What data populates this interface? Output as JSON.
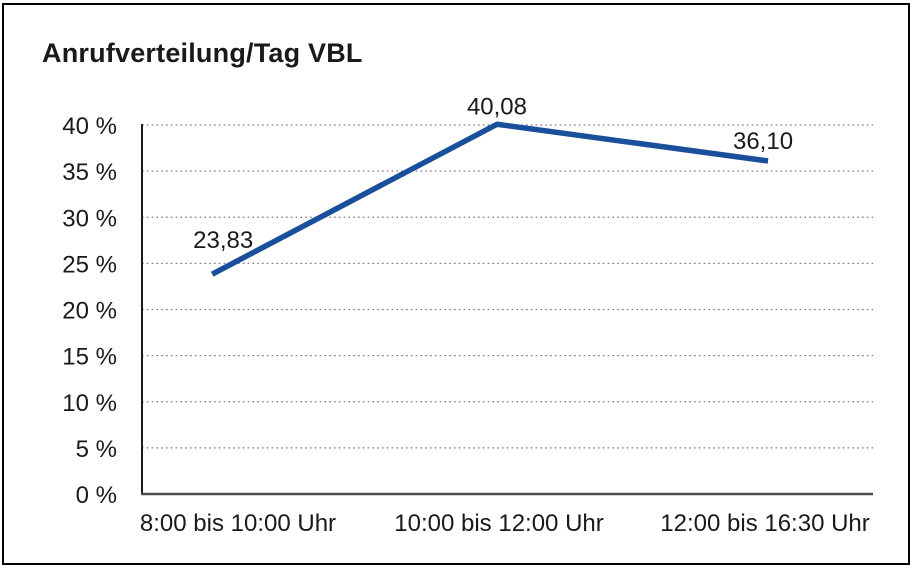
{
  "chart_data": {
    "type": "line",
    "title": "Anrufverteilung/Tag VBL",
    "categories": [
      "8:00 bis 10:00 Uhr",
      "10:00 bis 12:00 Uhr",
      "12:00 bis 16:30 Uhr"
    ],
    "values": [
      23.83,
      40.08,
      36.1
    ],
    "value_labels": [
      "23,83",
      "40,08",
      "36,10"
    ],
    "xlabel": "",
    "ylabel": "",
    "ylim": [
      0,
      40
    ],
    "yticks": [
      0,
      5,
      10,
      15,
      20,
      25,
      30,
      35,
      40
    ],
    "ytick_labels": [
      "0 %",
      "5 %",
      "10 %",
      "15 %",
      "20 %",
      "25 %",
      "30 %",
      "35 %",
      "40 %"
    ],
    "grid": "horizontal-dotted",
    "legend": "none",
    "colors": {
      "line": "#1A4F9C",
      "text": "#1a1a1a",
      "grid": "#7a7a7a",
      "x_axis": "#4d4d4d",
      "y_axis": "#1a1a1a",
      "frame_border": "#000000",
      "background": "#ffffff"
    }
  }
}
